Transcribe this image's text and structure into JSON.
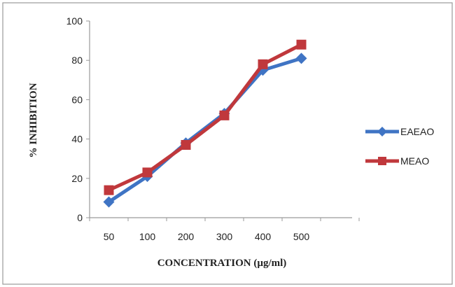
{
  "chart_data": {
    "type": "line",
    "title": "",
    "xlabel": "CONCENTRATION (µg/ml)",
    "ylabel": "% INHIBITION",
    "categories": [
      "50",
      "100",
      "200",
      "300",
      "400",
      "500"
    ],
    "ylim": [
      0,
      100
    ],
    "yticks": [
      0,
      20,
      40,
      60,
      80,
      100
    ],
    "grid": false,
    "legend_position": "right",
    "series": [
      {
        "name": "EAEAO",
        "color": "#3f74c4",
        "marker": "diamond",
        "values": [
          8,
          21,
          38,
          53,
          75,
          81
        ]
      },
      {
        "name": "MEAO",
        "color": "#c0383c",
        "marker": "square",
        "values": [
          14,
          23,
          37,
          52,
          78,
          88
        ]
      }
    ]
  }
}
